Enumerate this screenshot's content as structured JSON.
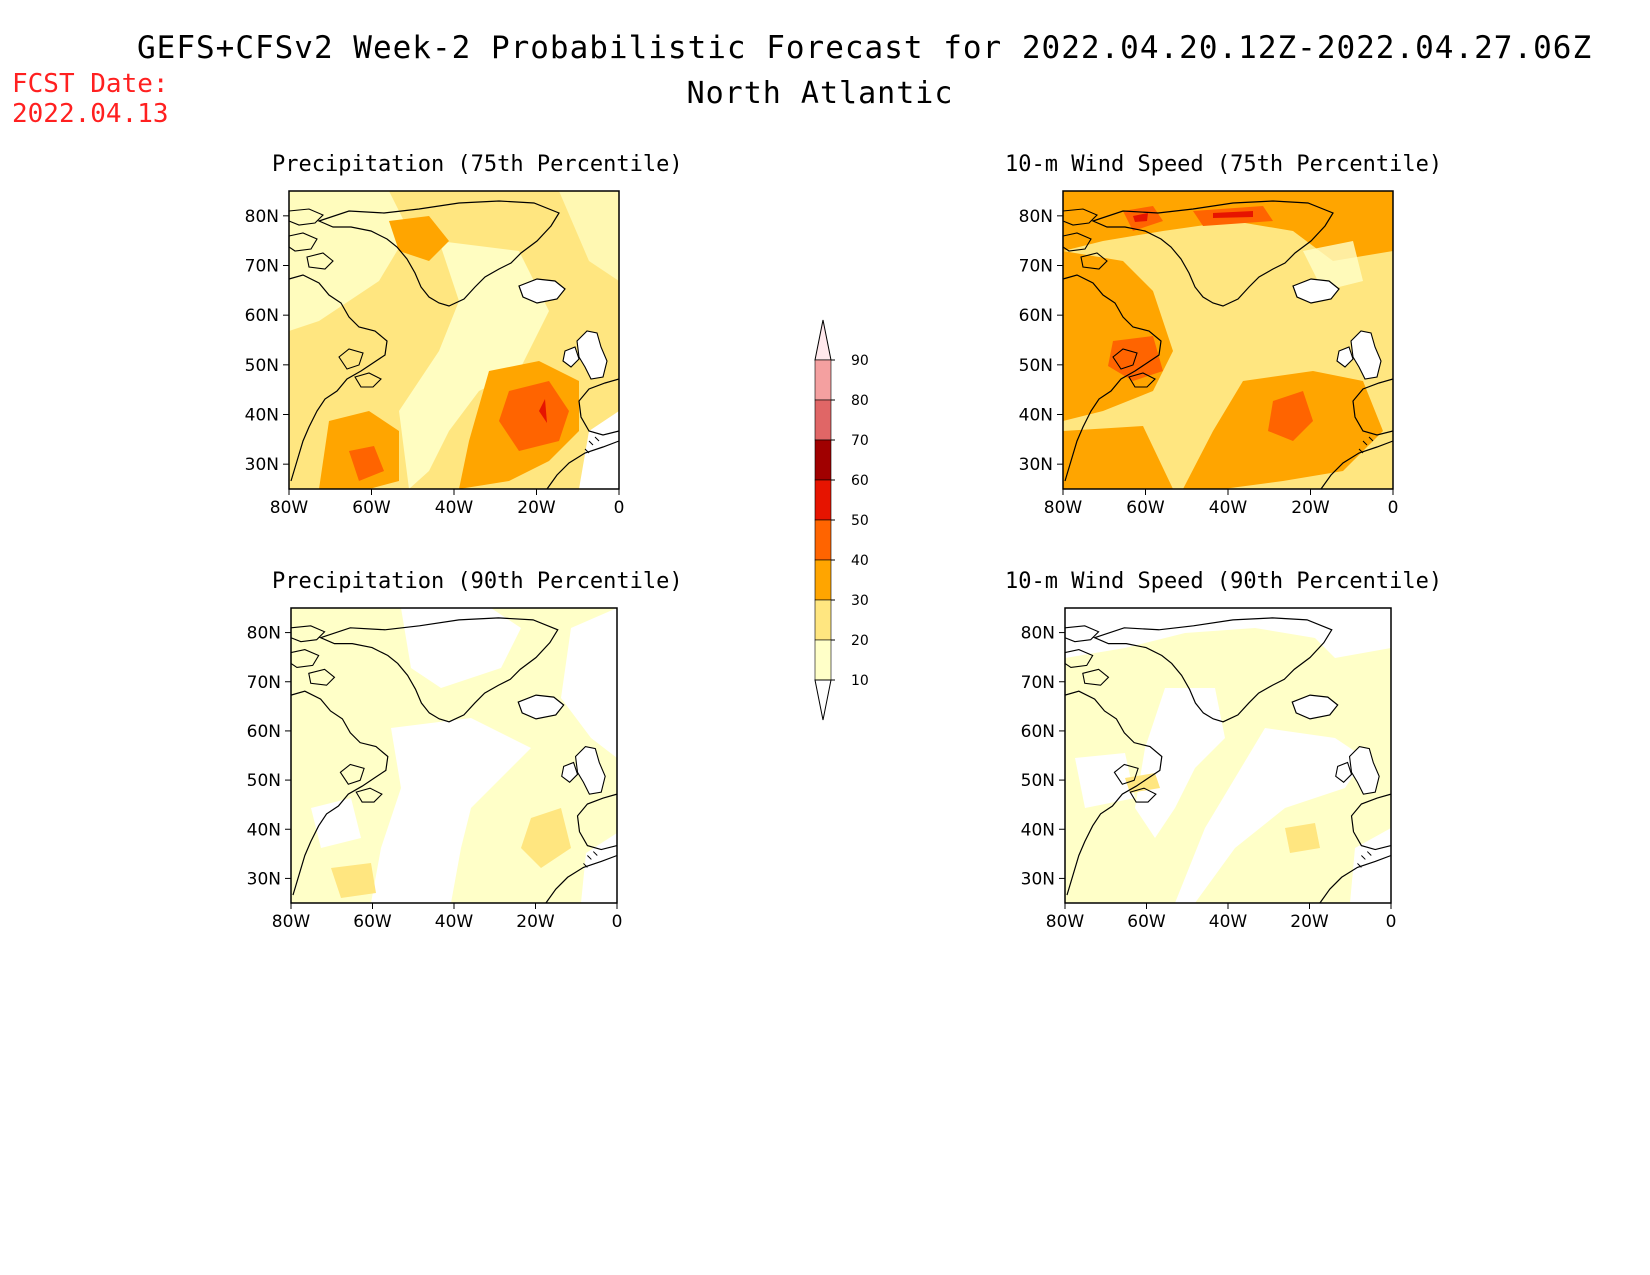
{
  "header": {
    "title": "GEFS+CFSv2 Week-2 Probabilistic Forecast for 2022.04.20.12Z-2022.04.27.06Z",
    "subtitle": "North Atlantic",
    "fcst_label": "FCST Date:",
    "fcst_date": "2022.04.13"
  },
  "colors": {
    "c10": "#ffffc8",
    "c20": "#ffe680",
    "c30": "#ffa500",
    "c40": "#ff6400",
    "c50": "#e61400",
    "c60": "#a00000",
    "c70": "#e06666",
    "c80": "#f4a0a0",
    "c90": "#ffe8ec",
    "land": "#000000"
  },
  "colorbar": {
    "levels": [
      "90",
      "80",
      "70",
      "60",
      "50",
      "40",
      "30",
      "20",
      "10"
    ]
  },
  "axes": {
    "lat_labels": [
      "80N",
      "70N",
      "60N",
      "50N",
      "40N",
      "30N"
    ],
    "lon_labels": [
      "80W",
      "60W",
      "40W",
      "20W",
      "0"
    ]
  },
  "panels": [
    {
      "id": "precip75",
      "title": "Precipitation (75th Percentile)"
    },
    {
      "id": "wind75",
      "title": "10-m Wind Speed (75th Percentile)"
    },
    {
      "id": "precip90",
      "title": "Precipitation (90th Percentile)"
    },
    {
      "id": "wind90",
      "title": "10-m Wind Speed (90th Percentile)"
    }
  ]
}
